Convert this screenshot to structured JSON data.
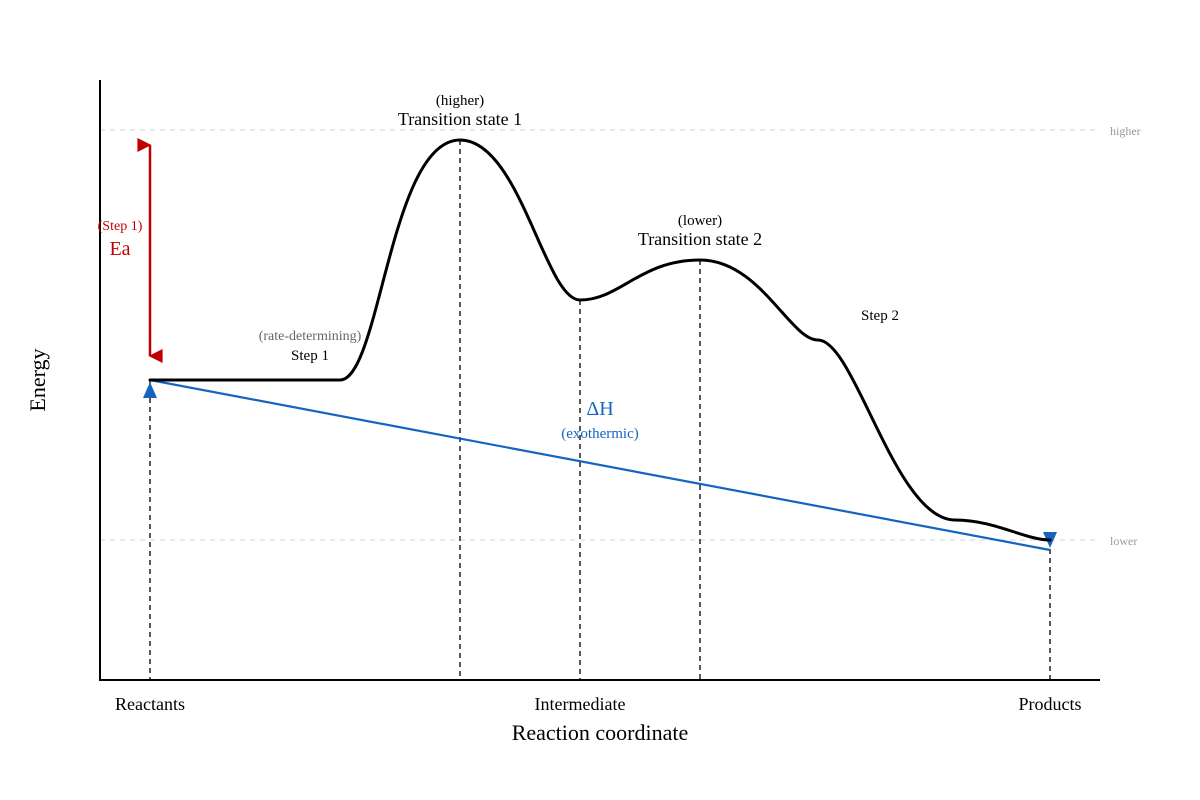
{
  "diagram": {
    "xlabel": "Reaction coordinate",
    "ylabel": "Energy",
    "x_ticks": [
      "Reactants",
      "Intermediate",
      "Products"
    ],
    "reference_lines": {
      "upper": "higher",
      "lower": "lower"
    },
    "peaks": [
      {
        "sub": "(higher)",
        "label": "Transition state 1"
      },
      {
        "sub": "(lower)",
        "label": "Transition state 2"
      }
    ],
    "steps": [
      {
        "label": "Step 1",
        "note": "(rate-determining)"
      },
      {
        "label": "Step 2"
      }
    ],
    "activation_energy": {
      "label": "Ea",
      "note": "(Step 1)",
      "color": "#c00000"
    },
    "enthalpy_change": {
      "label": "ΔH",
      "note": "(exothermic)",
      "color": "#1565c0"
    },
    "curve_color": "#000000"
  }
}
